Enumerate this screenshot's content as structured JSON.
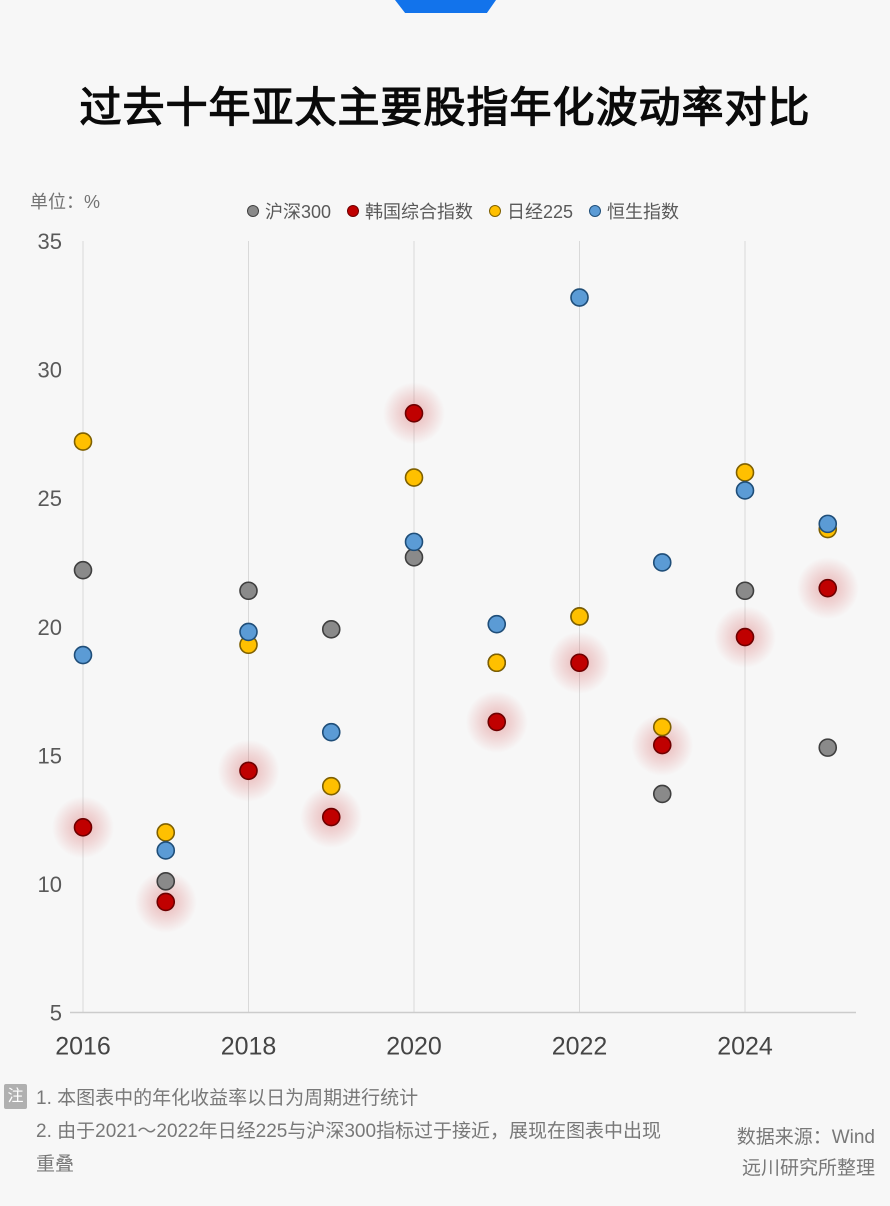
{
  "header": {
    "logo_color": "#1273eb",
    "title": "过去十年亚太主要股指年化波动率对比",
    "unit_label": "单位：%"
  },
  "chart_data": {
    "type": "scatter",
    "x": [
      2016,
      2017,
      2018,
      2019,
      2020,
      2021,
      2022,
      2023,
      2024,
      2025
    ],
    "x_tick_labels": [
      "2016",
      "2018",
      "2020",
      "2022",
      "2024"
    ],
    "x_tick_years": [
      2016,
      2018,
      2020,
      2022,
      2024
    ],
    "ylim": [
      5,
      35
    ],
    "y_ticks": [
      35,
      30,
      25,
      20,
      15,
      10,
      5
    ],
    "grid": "vertical-gridlines-on-labeled-years",
    "legend_position": "top-center",
    "unit": "%",
    "title": "过去十年亚太主要股指年化波动率对比",
    "series": [
      {
        "name": "沪深300",
        "color": "#8a8a8a",
        "stroke": "#3f3f3f",
        "glow": false,
        "values": [
          22.2,
          10.1,
          21.4,
          19.9,
          22.7,
          18.6,
          20.4,
          13.5,
          21.4,
          15.3
        ]
      },
      {
        "name": "韩国综合指数",
        "color": "#c00000",
        "stroke": "#6e0000",
        "glow": true,
        "values": [
          12.2,
          9.3,
          14.4,
          12.6,
          28.3,
          16.3,
          18.6,
          15.4,
          19.6,
          21.5
        ]
      },
      {
        "name": "日经225",
        "color": "#ffc000",
        "stroke": "#7f6000",
        "glow": false,
        "values": [
          27.2,
          12.0,
          19.3,
          13.8,
          25.8,
          18.6,
          20.4,
          16.1,
          26.0,
          23.8
        ]
      },
      {
        "name": "恒生指数",
        "color": "#5b9bd5",
        "stroke": "#1f4e79",
        "glow": false,
        "values": [
          18.9,
          11.3,
          19.8,
          15.9,
          23.3,
          20.1,
          32.8,
          22.5,
          25.3,
          24.0
        ]
      }
    ],
    "annotations": {
      "overlap_note": "2021~2022年日经225与沪深300数值重叠，灰点被黄点遮盖"
    }
  },
  "notes": {
    "badge": "注",
    "line1": "1. 本图表中的年化收益率以日为周期进行统计",
    "line2": "2. 由于2021～2022年日经225与沪深300指标过于接近，展现在图表中出现重叠"
  },
  "source": {
    "line1": "数据来源：Wind",
    "line2": "远川研究所整理"
  },
  "colors": {
    "background": "#f7f7f7",
    "gridline": "#d9d9d9",
    "axis_line": "#cccccc",
    "y_tick_text": "#595959",
    "x_tick_text": "#454545",
    "note_text": "#787878",
    "glow": "#d55a5a"
  }
}
